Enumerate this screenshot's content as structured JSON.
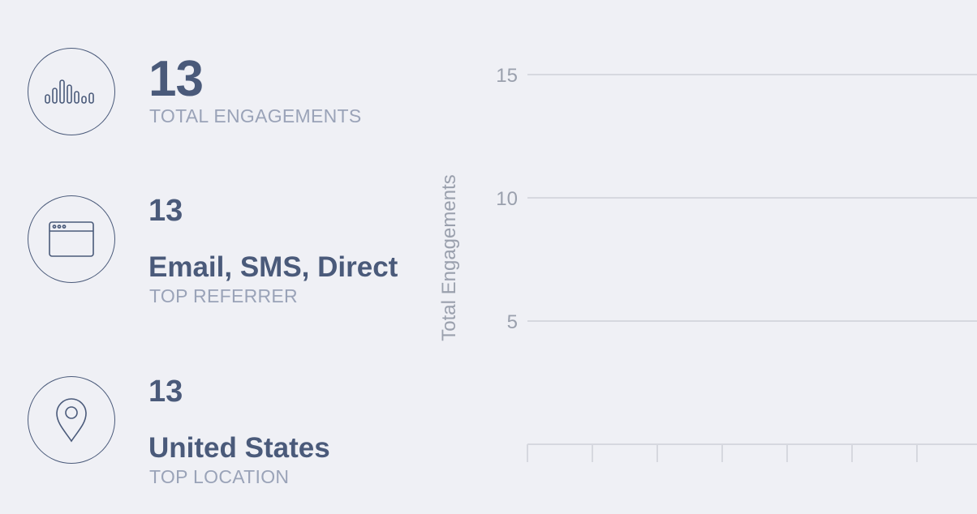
{
  "stats": {
    "engagements": {
      "value": "13",
      "label": "TOTAL ENGAGEMENTS",
      "icon": "engagement-bars-icon"
    },
    "referrer": {
      "count": "13",
      "value": "Email, SMS, Direct",
      "label": "TOP REFERRER",
      "icon": "browser-window-icon"
    },
    "location": {
      "count": "13",
      "value": "United States",
      "label": "TOP LOCATION",
      "icon": "location-pin-icon"
    }
  },
  "colors": {
    "background": "#eff0f5",
    "primary_text": "#4a5a7a",
    "muted_text": "#9aa3b8",
    "gridline": "#d6d8df"
  },
  "chart_data": {
    "type": "bar",
    "title": "",
    "xlabel": "",
    "ylabel": "Total Engagements",
    "ylim": [
      0,
      15
    ],
    "y_ticks": [
      5,
      10,
      15
    ],
    "y_tick_labels": [
      "5",
      "10",
      "15"
    ],
    "grid": true,
    "categories": [],
    "values": []
  }
}
